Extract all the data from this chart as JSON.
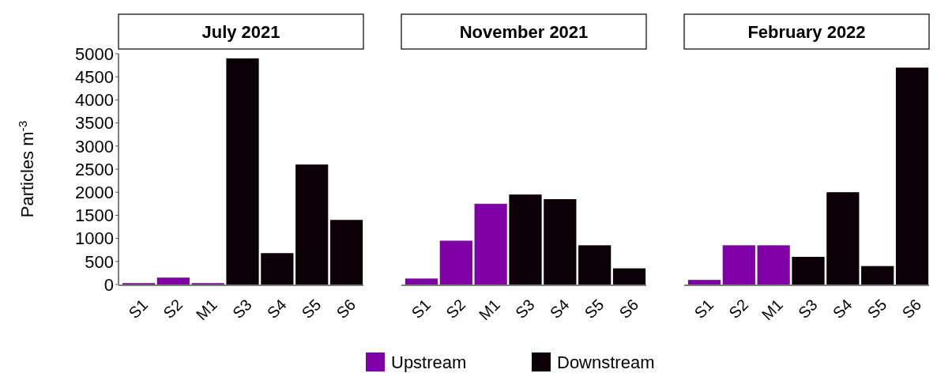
{
  "chart_data": [
    {
      "type": "bar",
      "title": "July 2021",
      "ylabel": "Particles m$^{-3}$",
      "categories": [
        "S1",
        "S2",
        "M1",
        "S3",
        "S4",
        "S5",
        "S6"
      ],
      "series": [
        {
          "name": "Upstream",
          "color": "#8000a8",
          "values": [
            30,
            150,
            30,
            null,
            null,
            null,
            null
          ]
        },
        {
          "name": "Downstream",
          "color": "#0a0005",
          "values": [
            null,
            null,
            null,
            4900,
            680,
            2600,
            1400
          ]
        }
      ],
      "ylim": [
        0,
        5000
      ],
      "yticks": [
        0,
        500,
        1000,
        1500,
        2000,
        2500,
        3000,
        3500,
        4000,
        4500,
        5000
      ],
      "legend": "bottom"
    },
    {
      "type": "bar",
      "title": "November 2021",
      "categories": [
        "S1",
        "S2",
        "M1",
        "S3",
        "S4",
        "S5",
        "S6"
      ],
      "series": [
        {
          "color": "#8000a8",
          "values": [
            130,
            950,
            1750,
            null,
            null,
            null,
            null
          ]
        },
        {
          "color": "#0a0005",
          "values": [
            null,
            null,
            null,
            1950,
            1850,
            850,
            350
          ]
        }
      ],
      "ylim": [
        0,
        5000
      ],
      "tick_labels": "x"
    },
    {
      "type": "bar",
      "title": "February 2022",
      "categories": [
        "S1",
        "S2",
        "M1",
        "S3",
        "S4",
        "S5",
        "S6"
      ],
      "series": [
        {
          "color": "#8000a8",
          "values": [
            100,
            850,
            850,
            null,
            null,
            null,
            null
          ]
        },
        {
          "color": "#0a0005",
          "values": [
            null,
            null,
            null,
            600,
            2000,
            400,
            4700
          ]
        }
      ],
      "ylim": [
        0,
        5000
      ],
      "tick_labels": "x"
    }
  ]
}
